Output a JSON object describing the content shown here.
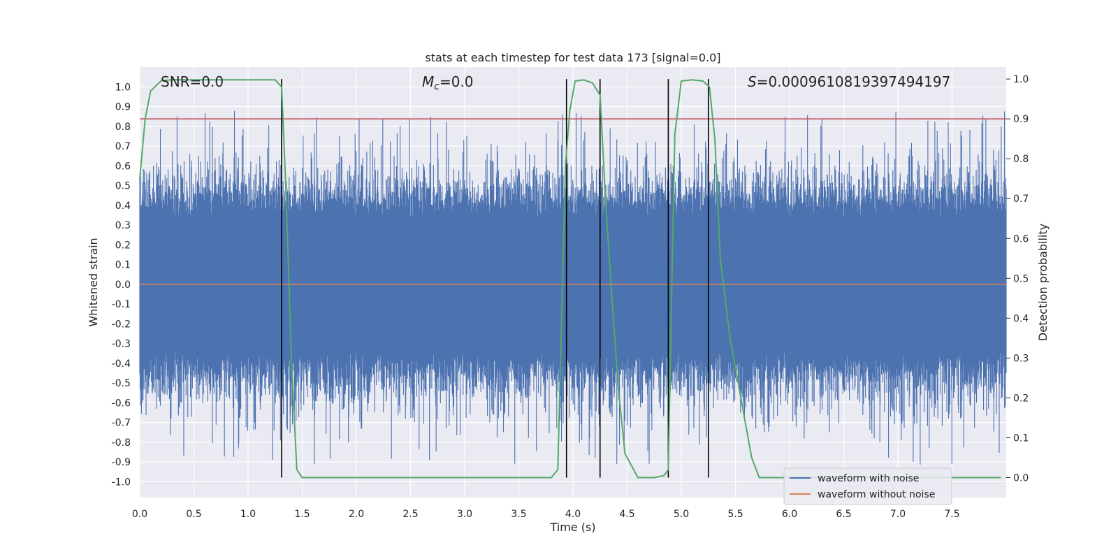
{
  "chart_data": {
    "type": "line",
    "title": "stats at each timestep for test data 173 [signal=0.0]",
    "xlabel": "Time (s)",
    "ylabel_left": "Whitened strain",
    "ylabel_right": "Detection probability",
    "xlim": [
      0.0,
      8.0
    ],
    "ylim_left": [
      -1.08,
      1.1
    ],
    "ylim_right": [
      -0.05,
      1.03
    ],
    "x_ticks": [
      0.0,
      0.5,
      1.0,
      1.5,
      2.0,
      2.5,
      3.0,
      3.5,
      4.0,
      4.5,
      5.0,
      5.5,
      6.0,
      6.5,
      7.0,
      7.5
    ],
    "x_tick_labels": [
      "0.0",
      "0.5",
      "1.0",
      "1.5",
      "2.0",
      "2.5",
      "3.0",
      "3.5",
      "4.0",
      "4.5",
      "5.0",
      "5.5",
      "6.0",
      "6.5",
      "7.0",
      "7.5"
    ],
    "y_left_ticks": [
      -1.0,
      -0.9,
      -0.8,
      -0.7,
      -0.6,
      -0.5,
      -0.4,
      -0.3,
      -0.2,
      -0.1,
      0.0,
      0.1,
      0.2,
      0.3,
      0.4,
      0.5,
      0.6,
      0.7,
      0.8,
      0.9,
      1.0
    ],
    "y_left_tick_labels": [
      "-1.0",
      "-0.9",
      "-0.8",
      "-0.7",
      "-0.6",
      "-0.5",
      "-0.4",
      "-0.3",
      "-0.2",
      "-0.1",
      "0.0",
      "0.1",
      "0.2",
      "0.3",
      "0.4",
      "0.5",
      "0.6",
      "0.7",
      "0.8",
      "0.9",
      "1.0"
    ],
    "y_right_ticks": [
      0.0,
      0.1,
      0.2,
      0.3,
      0.4,
      0.5,
      0.6,
      0.7,
      0.8,
      0.9,
      1.0
    ],
    "y_right_tick_labels": [
      "0.0",
      "0.1",
      "0.2",
      "0.3",
      "0.4",
      "0.5",
      "0.6",
      "0.7",
      "0.8",
      "0.9",
      "1.0"
    ],
    "annotations": {
      "snr": "SNR=0.0",
      "mc": "M",
      "mc_sub": "c",
      "mc_value": "=0.0",
      "s": "S",
      "s_value": "=0.0009610819397494197"
    },
    "threshold_right": 0.9,
    "detection_boundaries": [
      1.31,
      3.94,
      4.25,
      4.88,
      5.25
    ],
    "noise_amplitude": {
      "typical_abs": 0.38,
      "spike_max": 0.88,
      "spike_min": -0.92
    },
    "detection_probability": {
      "x": [
        0.0,
        0.05,
        0.1,
        0.2,
        0.3,
        0.5,
        0.8,
        1.0,
        1.2,
        1.25,
        1.31,
        1.35,
        1.4,
        1.45,
        1.5,
        2.0,
        3.0,
        3.8,
        3.86,
        3.93,
        3.97,
        4.02,
        4.1,
        4.18,
        4.25,
        4.3,
        4.36,
        4.42,
        4.48,
        4.6,
        4.75,
        4.84,
        4.88,
        4.94,
        5.0,
        5.1,
        5.2,
        5.26,
        5.31,
        5.36,
        5.45,
        5.55,
        5.65,
        5.72,
        6.0,
        7.0,
        7.95
      ],
      "y": [
        0.75,
        0.9,
        0.97,
        0.996,
        0.998,
        0.998,
        0.998,
        0.998,
        0.998,
        0.998,
        0.98,
        0.72,
        0.3,
        0.02,
        0.0,
        0.0,
        0.0,
        0.0,
        0.02,
        0.78,
        0.92,
        0.995,
        0.998,
        0.99,
        0.96,
        0.7,
        0.45,
        0.22,
        0.06,
        0.0,
        0.0,
        0.005,
        0.02,
        0.86,
        0.995,
        0.998,
        0.995,
        0.98,
        0.85,
        0.55,
        0.35,
        0.2,
        0.05,
        0.0,
        0.0,
        0.0,
        0.0
      ]
    },
    "legend": {
      "position": "lower-right",
      "entries": [
        {
          "label": "waveform with noise",
          "color": "#4c72b0"
        },
        {
          "label": "waveform without noise",
          "color": "#dd8452"
        }
      ]
    },
    "colors": {
      "background": "#eaeaf2",
      "grid": "#ffffff",
      "noise": "#4c72b0",
      "clean": "#dd8452",
      "probability": "#55a868",
      "threshold": "#c44e52",
      "boundary": "#000000"
    }
  }
}
